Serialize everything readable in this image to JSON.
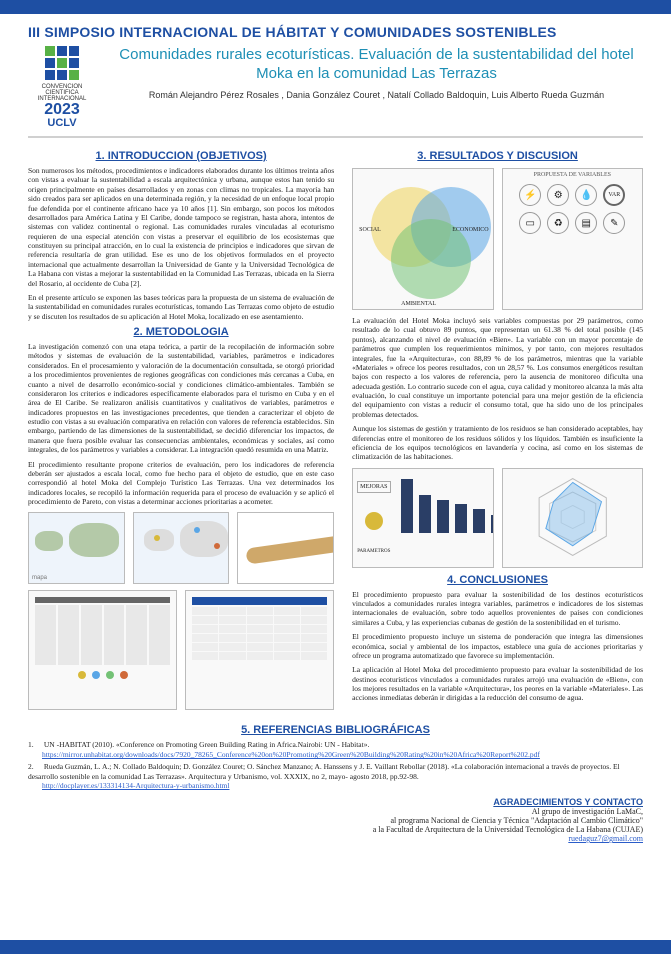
{
  "header": {
    "symposium": "III SIMPOSIO INTERNACIONAL DE HÁBITAT Y COMUNIDADES SOSTENIBLES",
    "paper_title": "Comunidades rurales ecoturísticas. Evaluación de la sustentabilidad del hotel Moka en la comunidad Las Terrazas",
    "authors": "Román Alejandro Pérez Rosales , Dania González Couret , Natalí Collado Baldoquin, Luis Alberto Rueda Guzmán",
    "logo": {
      "line1": "CONVENCION",
      "line2": "CIENTIFICA",
      "line3": "INTERNACIONAL",
      "year": "2023",
      "uclv": "UCLV",
      "squares": [
        "#58b146",
        "#1e4fa3",
        "#1e4fa3",
        "#1e4fa3",
        "#58b146",
        "#1e4fa3",
        "#1e4fa3",
        "#1e4fa3",
        "#58b146"
      ]
    }
  },
  "colors": {
    "brand_blue": "#1e4fa3",
    "title_teal": "#1e8fb5",
    "link": "#2a5cc9",
    "venn_green": "#74c276",
    "venn_blue": "#5aa6e6",
    "venn_yellow": "#efd35a",
    "bar_fill": "#2a3e66"
  },
  "sections": {
    "intro_title": "1. INTRODUCCION (OBJETIVOS)",
    "intro_p1": "Son numerosos los métodos, procedimientos e indicadores elaborados durante los últimos treinta años con vistas a evaluar la sustentabilidad a escala arquitectónica y urbana, aunque estos han tenido su origen principalmente en países desarrollados y en zonas con climas no tropicales. La mayoría han sido creados para ser aplicados en una determinada región, y la necesidad de un enfoque local propio fue defendida por el continente africano hace ya 10 años [1]. Sin embargo, son pocos los métodos desarrollados para América Latina y El Caribe, donde tampoco se registran, hasta ahora, intentos de sistemas con validez continental o regional. Las comunidades rurales vinculadas al ecoturismo requieren de una especial atención con vistas a preservar el equilibrio de los ecosistemas que constituyen su principal atracción, en lo cual la existencia de principios e indicadores que sirvan de referencia resultaría de gran utilidad. Ese es uno de los objetivos formulados en el proyecto internacional que actualmente desarrollan la Universidad de Gante y la Universidad Tecnológica de La Habana con vistas a mejorar la sustentabilidad en la Comunidad Las Terrazas, ubicada en la Sierra del Rosario, al occidente de Cuba [2].",
    "intro_p2": "En el presente artículo se exponen las bases teóricas para la propuesta de un sistema de evaluación de la sustentabilidad en comunidades rurales ecoturísticas, tomando Las Terrazas como objeto de estudio y se discuten los resultados de su aplicación al Hotel Moka, localizado en ese asentamiento.",
    "metodo_title": "2. METODOLOGIA",
    "metodo_p1": "La investigación comenzó con una etapa teórica, a partir de la recopilación de información sobre métodos y sistemas de evaluación de la sustentabilidad, variables, parámetros e indicadores considerados. En el procesamiento y valoración de la documentación consultada, se otorgó prioridad a los procedimientos provenientes de regiones geográficas con condiciones más cercanas a Cuba, en cuanto a nivel de desarrollo económico-social y condiciones climático-ambientales. También se consideraron los criterios e indicadores específicamente elaborados para el turismo en Cuba y en el área de El Caribe. Se realizaron análisis cuantitativos y cualitativos de variables, parámetros e indicadores propuestos en las investigaciones precedentes, que tienden a caracterizar el objeto de estudio con vistas a su evaluación comparativa en relación con valores de referencia establecidos. Sin embargo, partiendo de las dimensiones de la sustentabilidad, se decidió diferenciar los impactos, de manera que fuera posible evaluar las consecuencias ambientales, económicas y sociales, así como integrales, de los parámetros y variables a considerar. La integración quedó resumida en una Matriz.",
    "metodo_p2": "El procedimiento resultante propone criterios de evaluación, pero los indicadores de referencia deberán ser ajustados a escala local, como fue hecho para el objeto de estudio, que en este caso correspondió al hotel Moka del Complejo Turístico Las Terrazas. Una vez determinados los indicadores locales, se recopiló la información requerida para el proceso de evaluación y se aplicó el procedimiento de Pareto, con vistas a determinar acciones prioritarias a acometer.",
    "result_title": "3. RESULTADOS Y DISCUSION",
    "result_p1": "La evaluación del Hotel Moka incluyó seis variables compuestas por 29 parámetros, como resultado de lo cual obtuvo 89 puntos, que representan un 61.38 % del total posible (145 puntos), alcanzando el nivel de evaluación «Bien». La variable con un mayor porcentaje de parámetros que cumplen los requerimientos mínimos, y por tanto, con mejores resultados integrales, fue la «Arquitectura», con 88,89 % de los parámetros, mientras que la variable «Materiales » ofrece los peores resultados, con un 28,57 %. Los consumos energéticos resultan bajos con respecto a los valores de referencia, pero la ausencia de monitoreo dificulta una adecuada gestión. Lo contrario sucede con el agua, cuya calidad y monitoreo alcanza la más alta evaluación, lo cual constituye un importante potencial para una mejor gestión de la eficiencia del equipamiento con vistas a reducir el consumo total, que ha sido uno de los principales problemas detectados.",
    "result_p2": "Aunque los sistemas de gestión y tratamiento de los residuos se han considerado aceptables, hay diferencias entre el monitoreo de los residuos sólidos y los líquidos. También es insuficiente la eficiencia de los equipos tecnológicos en lavandería y cocina, así como en los sistemas de climatización de las habitaciones.",
    "concl_title": "4. CONCLUSIONES",
    "concl_p1": "El procedimiento propuesto para evaluar la sostenibilidad de los destinos ecoturísticos vinculados a comunidades rurales integra variables, parámetros e indicadores de los sistemas internacionales de evaluación, sobre todo aquellos provenientes de países con condiciones similares a Cuba, y las experiencias cubanas de gestión de la sostenibilidad en el turismo.",
    "concl_p2": "El procedimiento propuesto incluye un sistema de ponderación que integra las dimensiones económica, social y ambiental de los impactos, establece una guía de acciones prioritarias y ofrece un programa automatizado que favorece su implementación.",
    "concl_p3": "La aplicación al Hotel Moka del procedimiento propuesto para evaluar la sostenibilidad de los destinos ecoturísticos vinculados a comunidades rurales arrojó una evaluación de «Bien», con los mejores resultados en la variable «Arquitectura», los peores en la variable «Materiales». Las acciones inmediatas deberán ir dirigidas a la reducción del consumo de agua."
  },
  "figures": {
    "venn": {
      "labels": [
        "SOCIAL",
        "ECONOMICO",
        "AMBIENTAL"
      ]
    },
    "variables_panel": {
      "title": "PROPUESTA DE VARIABLES",
      "items": [
        "ENERGIA",
        "TECNOLOGIA",
        "AGUA",
        "VARIABLES",
        "ARQUITECTURA",
        "MATERIALES",
        "RESIDUOS",
        "PLAN GENERAL"
      ]
    },
    "bar_chart": {
      "values": [
        88.89,
        62,
        55,
        48,
        40,
        28.57
      ],
      "ymax": 100
    },
    "radar": {
      "axes": 6
    },
    "maps_row_caption": "",
    "matrix_caption": ""
  },
  "references": {
    "title": "5. REFERENCIAS BIBLIOGRÁFICAS",
    "items": [
      {
        "num": "1.",
        "text_a": "UN -HABITAT (2010). «Conference on Promoting Green Building Rating in Africa.Nairobi: UN - Habitat».",
        "url": "https://mirror.unhabitat.org/downloads/docs/7920_78265_Conference%20on%20Promoting%20Green%20Building%20Rating%20in%20Africa%20Report%202.pdf"
      },
      {
        "num": "2.",
        "text_a": "Rueda Guzmán, L. A.; N. Collado Baldoquin; D. González Couret; O. Sánchez Manzano; A. Hanssens y J. E. Vaillant Rebollar (2018). «La colaboración internacional a través de proyectos. El desarrollo sostenible en la comunidad Las Terrazas». Arquitectura y Urbanismo, vol. XXXIX, no 2, mayo- agosto 2018, pp.92-98.",
        "url": "http://docplayer.es/133314134-Arquitectura-y-urbanismo.html"
      }
    ]
  },
  "ack": {
    "title": "AGRADECIMIENTOS Y CONTACTO",
    "l1": "Al grupo de investigación LaMaC,",
    "l2": "al programa Nacional de Ciencia y Técnica \"Adaptación al Cambio Climático\"",
    "l3": "a la Facultad de Arquitectura de la Universidad Tecnológica de La Habana (CUJAE)",
    "email": "ruedaguz7@gmail.com"
  }
}
